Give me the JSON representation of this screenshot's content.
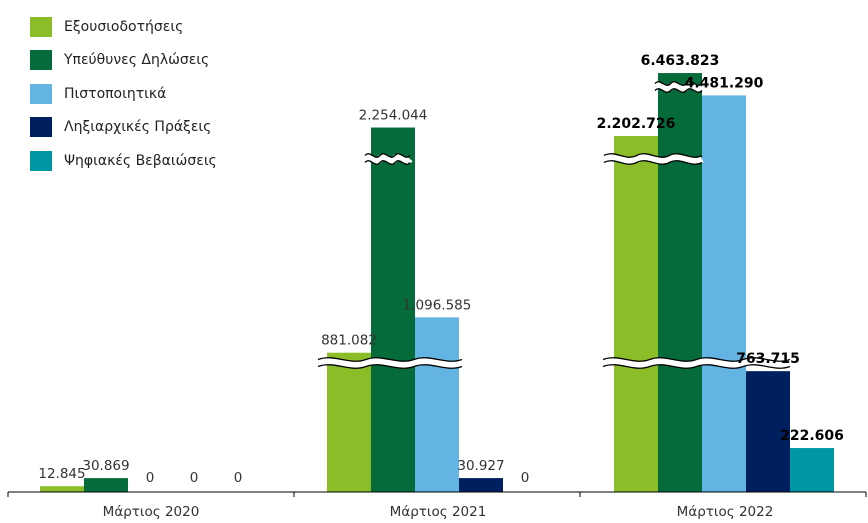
{
  "chart_data": {
    "type": "bar",
    "categories": [
      "Μάρτιος 2020",
      "Μάρτιος 2021",
      "Μάρτιος 2022"
    ],
    "series": [
      {
        "name": "Εξουσιοδοτήσεις",
        "color": "#8bbd29",
        "values": [
          12845,
          881082,
          2202726
        ],
        "labels": [
          "12.845",
          "881.082",
          "2.202.726"
        ]
      },
      {
        "name": "Υπεύθυνες Δηλώσεις",
        "color": "#056b3a",
        "values": [
          30869,
          2254044,
          6463823
        ],
        "labels": [
          "30.869",
          "2.254.044",
          "6.463.823"
        ]
      },
      {
        "name": "Πιστοποιητικά",
        "color": "#63b4e3",
        "values": [
          0,
          1096585,
          4481290
        ],
        "labels": [
          "0",
          "1.096.585",
          "4.481.290"
        ]
      },
      {
        "name": "Ληξιαρχικές Πράξεις",
        "color": "#001f5f",
        "values": [
          0,
          30927,
          763715
        ],
        "labels": [
          "0",
          "30.927",
          "763.715"
        ]
      },
      {
        "name": "Ψηφιακές Βεβαιώσεις",
        "color": "#0097a5",
        "values": [
          0,
          0,
          222606
        ],
        "labels": [
          "0",
          "0",
          "222.606"
        ]
      }
    ],
    "axis_break": true,
    "legend_position": "top-left",
    "grid": false
  }
}
